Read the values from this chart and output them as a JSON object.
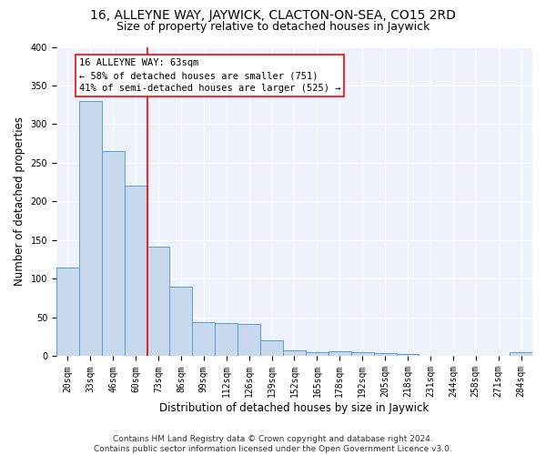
{
  "title": "16, ALLEYNE WAY, JAYWICK, CLACTON-ON-SEA, CO15 2RD",
  "subtitle": "Size of property relative to detached houses in Jaywick",
  "xlabel": "Distribution of detached houses by size in Jaywick",
  "ylabel": "Number of detached properties",
  "bar_color": "#c9d9ed",
  "bar_edge_color": "#5b9bd5",
  "background_color": "#eef3fb",
  "grid_color": "white",
  "categories": [
    "20sqm",
    "33sqm",
    "46sqm",
    "60sqm",
    "73sqm",
    "86sqm",
    "99sqm",
    "112sqm",
    "126sqm",
    "139sqm",
    "152sqm",
    "165sqm",
    "178sqm",
    "192sqm",
    "205sqm",
    "218sqm",
    "231sqm",
    "244sqm",
    "258sqm",
    "271sqm",
    "284sqm"
  ],
  "values": [
    115,
    330,
    265,
    220,
    142,
    90,
    44,
    43,
    42,
    20,
    8,
    5,
    6,
    5,
    4,
    3,
    0,
    0,
    0,
    0,
    5
  ],
  "annotation_line1": "16 ALLEYNE WAY: 63sqm",
  "annotation_line2": "← 58% of detached houses are smaller (751)",
  "annotation_line3": "41% of semi-detached houses are larger (525) →",
  "vline_position": 3.5,
  "ylim": [
    0,
    400
  ],
  "yticks": [
    0,
    50,
    100,
    150,
    200,
    250,
    300,
    350,
    400
  ],
  "footer": "Contains HM Land Registry data © Crown copyright and database right 2024.\nContains public sector information licensed under the Open Government Licence v3.0.",
  "title_fontsize": 10,
  "subtitle_fontsize": 9,
  "xlabel_fontsize": 8.5,
  "ylabel_fontsize": 8.5,
  "tick_fontsize": 7,
  "annotation_fontsize": 7.5,
  "footer_fontsize": 6.5
}
